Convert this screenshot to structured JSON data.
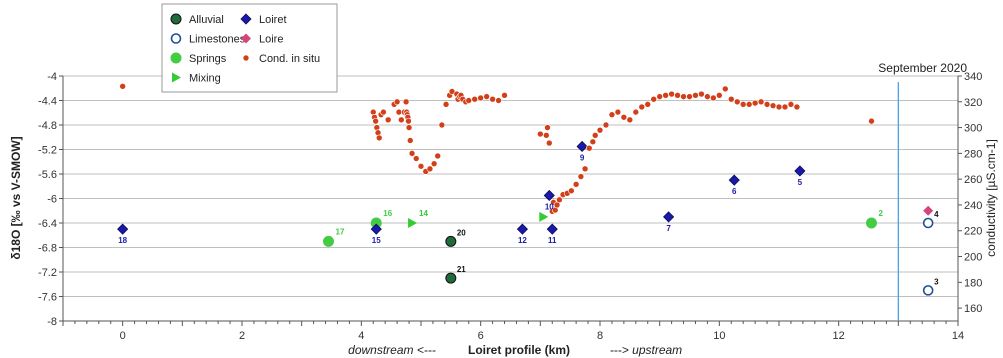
{
  "chart_data": {
    "type": "scatter",
    "title": "September 2020",
    "xlabel": "Loiret profile (km)",
    "xlabel_left": "downstream <---",
    "xlabel_right": "---> upstream",
    "ylabel": "δ18O [‰ vs V-SMOW]",
    "y2label": "conductivity [µS.cm-1]",
    "xlim": [
      -1,
      14
    ],
    "ylim": [
      -8,
      -4
    ],
    "y2lim": [
      150,
      340
    ],
    "xticks": [
      0,
      2,
      4,
      6,
      8,
      10,
      12,
      14
    ],
    "yticks": [
      -4,
      -4.4,
      -4.8,
      -5.2,
      -5.6,
      -6,
      -6.4,
      -6.8,
      -7.2,
      -7.6,
      -8
    ],
    "y2ticks": [
      160,
      180,
      200,
      220,
      240,
      260,
      280,
      300,
      320,
      340
    ],
    "grid": true,
    "legend_position": "top-left",
    "vline_x": 13,
    "colors": {
      "alluvial": "#1f6b3a",
      "limestones": "#1f4e9a",
      "springs": "#44cc44",
      "mixing": "#33cc33",
      "loiret": "#1a1aaa",
      "loire": "#d6457a",
      "cond": "#d2401a",
      "vline": "#4aa3df",
      "grid": "#bfbfbf"
    },
    "series": [
      {
        "name": "Alluvial",
        "marker": "circle-filled",
        "points": [
          {
            "x": 5.5,
            "y": -6.7,
            "label": "20"
          },
          {
            "x": 5.5,
            "y": -7.3,
            "label": "21"
          }
        ]
      },
      {
        "name": "Limestones",
        "marker": "circle-open",
        "points": [
          {
            "x": 13.5,
            "y": -6.4,
            "label": "4"
          },
          {
            "x": 13.5,
            "y": -7.5,
            "label": "3"
          }
        ]
      },
      {
        "name": "Springs",
        "marker": "circle-green",
        "points": [
          {
            "x": 3.45,
            "y": -6.7,
            "label": "17"
          },
          {
            "x": 4.25,
            "y": -6.4,
            "label": "16"
          },
          {
            "x": 12.55,
            "y": -6.4,
            "label": "2"
          }
        ]
      },
      {
        "name": "Mixing",
        "marker": "triangle",
        "points": [
          {
            "x": 4.85,
            "y": -6.4,
            "label": "14"
          },
          {
            "x": 7.05,
            "y": -6.3,
            "label": ""
          }
        ]
      },
      {
        "name": "Loiret",
        "marker": "diamond",
        "points": [
          {
            "x": 0,
            "y": -6.5,
            "label": "18"
          },
          {
            "x": 4.25,
            "y": -6.5,
            "label": "15"
          },
          {
            "x": 6.7,
            "y": -6.5,
            "label": "12"
          },
          {
            "x": 7.15,
            "y": -5.95,
            "label": "10"
          },
          {
            "x": 7.2,
            "y": -6.5,
            "label": "11"
          },
          {
            "x": 7.7,
            "y": -5.15,
            "label": "9"
          },
          {
            "x": 9.15,
            "y": -6.3,
            "label": "7"
          },
          {
            "x": 10.25,
            "y": -5.7,
            "label": "6"
          },
          {
            "x": 11.35,
            "y": -5.55,
            "label": "5"
          }
        ]
      },
      {
        "name": "Loire",
        "marker": "diamond-pink",
        "points": [
          {
            "x": 13.5,
            "y": -6.2,
            "label": ""
          }
        ]
      },
      {
        "name": "Cond. in situ",
        "marker": "dot",
        "axis": "right",
        "x": [
          0.0,
          4.2,
          4.22,
          4.24,
          4.26,
          4.28,
          4.3,
          4.33,
          4.37,
          4.45,
          4.55,
          4.6,
          4.63,
          4.67,
          4.72,
          4.75,
          4.76,
          4.77,
          4.78,
          4.79,
          4.8,
          4.82,
          4.85,
          4.92,
          5.0,
          5.08,
          5.15,
          5.22,
          5.28,
          5.35,
          5.42,
          5.48,
          5.52,
          5.6,
          5.62,
          5.65,
          5.67,
          5.7,
          5.75,
          5.8,
          5.9,
          6.0,
          6.1,
          6.2,
          6.3,
          6.4,
          7.0,
          7.1,
          7.12,
          7.15,
          7.2,
          7.22,
          7.25,
          7.28,
          7.32,
          7.38,
          7.45,
          7.52,
          7.6,
          7.68,
          7.75,
          7.82,
          7.88,
          7.92,
          8.0,
          8.1,
          8.2,
          8.3,
          8.4,
          8.5,
          8.6,
          8.7,
          8.8,
          8.9,
          9.0,
          9.1,
          9.2,
          9.3,
          9.4,
          9.5,
          9.6,
          9.7,
          9.8,
          9.9,
          10.0,
          10.1,
          10.2,
          10.3,
          10.4,
          10.5,
          10.6,
          10.7,
          10.8,
          10.9,
          11.0,
          11.1,
          11.2,
          11.3,
          12.55
        ],
        "y": [
          332,
          312,
          308,
          305,
          300,
          296,
          292,
          310,
          312,
          306,
          318,
          320,
          312,
          306,
          312,
          320,
          312,
          310,
          308,
          305,
          300,
          290,
          280,
          276,
          270,
          266,
          268,
          272,
          278,
          302,
          318,
          325,
          328,
          326,
          322,
          324,
          325,
          322,
          320,
          321,
          322,
          323,
          324,
          322,
          321,
          325,
          295,
          294,
          300,
          288,
          235,
          242,
          236,
          240,
          244,
          248,
          249,
          251,
          256,
          262,
          268,
          284,
          289,
          294,
          298,
          302,
          310,
          312,
          308,
          306,
          312,
          316,
          318,
          322,
          324,
          325,
          326,
          325,
          324,
          324,
          325,
          326,
          324,
          323,
          325,
          330,
          322,
          320,
          318,
          318,
          319,
          320,
          318,
          317,
          316,
          316,
          318,
          316,
          305
        ]
      }
    ],
    "legend": [
      "Alluvial",
      "Loiret",
      "Limestones",
      "Loire",
      "Springs",
      "Cond. in situ",
      "Mixing"
    ]
  }
}
